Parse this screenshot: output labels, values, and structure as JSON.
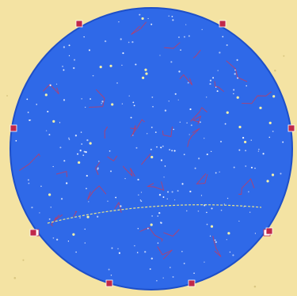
{
  "colors": {
    "paper": "#f4e3a3",
    "paper_speck": "#d8c57f",
    "sky": "#2f69e8",
    "sky_edge": "#1e4fc8",
    "star": "#ffffff",
    "bright_star": "#f4f0a8",
    "constellation_line": "#c8385a",
    "edge_marker_red": "#c0284a",
    "edge_marker_white": "#ffffff",
    "ecliptic": "#e8e38a",
    "label_text": "#ffffff"
  },
  "map": {
    "labels": [],
    "edge_markers": [
      {
        "color": "red"
      },
      {
        "color": "red"
      },
      {
        "color": "red"
      },
      {
        "color": "red"
      },
      {
        "color": "white"
      },
      {
        "color": "white"
      },
      {
        "color": "red"
      },
      {
        "color": "red"
      },
      {
        "color": "red"
      },
      {
        "color": "red"
      }
    ]
  }
}
